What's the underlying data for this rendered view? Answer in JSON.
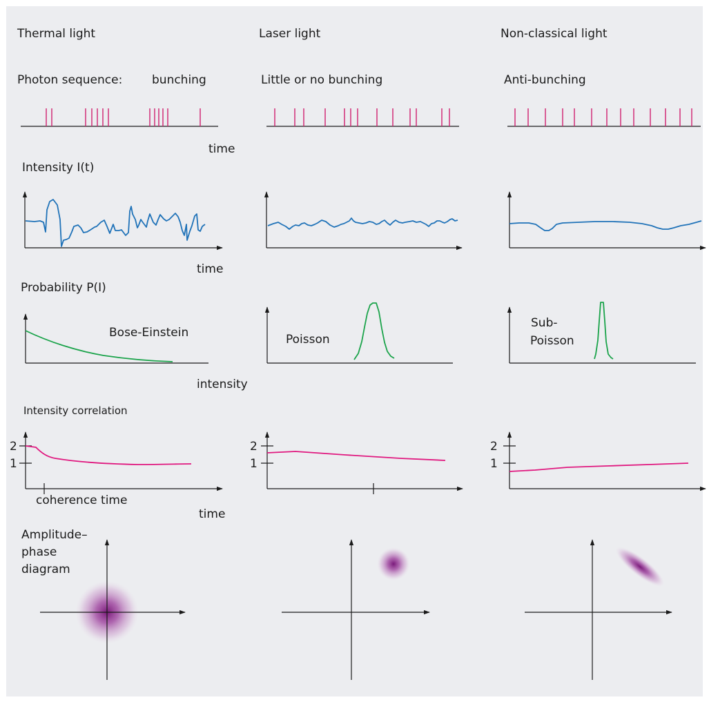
{
  "colors": {
    "background": "#ecedf0",
    "axis": "#1a1a1a",
    "photon": "#d01f6e",
    "intensity_curve": "#1f72b8",
    "probability_curve": "#1aa34a",
    "correlation_curve": "#e0187f",
    "phase_blob": "#7a1a7a"
  },
  "columns": [
    {
      "heading": "Thermal light",
      "photon_label_prefix": "Photon sequence:",
      "photon_label": "bunching",
      "time_label": "time",
      "intensity_heading": "Intensity I(t)",
      "time_label_2": "time",
      "probability_heading": "Probability P(I)",
      "distribution_label": "Bose-Einstein",
      "intensity_axis_label": "intensity",
      "correlation_heading": "Intensity correlation",
      "tick_2": "2",
      "tick_1": "1",
      "coherence_label": "coherence time",
      "time_label_3": "time",
      "phase_heading_1": "Amplitude–",
      "phase_heading_2": "phase",
      "phase_heading_3": "diagram"
    },
    {
      "heading": "Laser light",
      "photon_label": "Little or no bunching",
      "distribution_label": "Poisson",
      "tick_2": "2",
      "tick_1": "1"
    },
    {
      "heading": "Non-classical light",
      "photon_label": "Anti-bunching",
      "distribution_label_1": "Sub-",
      "distribution_label_2": "Poisson",
      "tick_2": "2",
      "tick_1": "1"
    }
  ]
}
